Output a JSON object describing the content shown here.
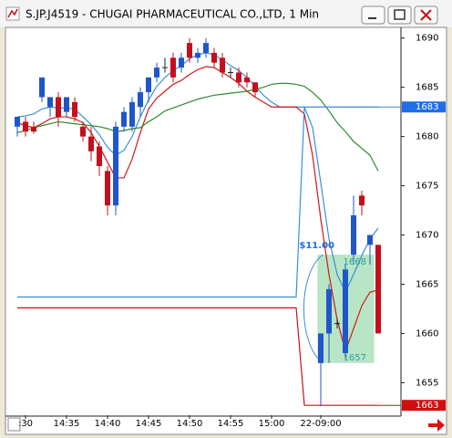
{
  "chart_data": {
    "type": "candlestick",
    "title": "S.JP.J4519 - CHUGAI PHARMACEUTICAL CO.,LTD, 1 Min",
    "categories": [
      null,
      ":30",
      null,
      null,
      null,
      null,
      "14:35",
      null,
      null,
      null,
      null,
      "14:40",
      null,
      null,
      null,
      null,
      "14:45",
      null,
      null,
      null,
      null,
      "14:50",
      null,
      null,
      null,
      null,
      "14:55",
      null,
      null,
      null,
      null,
      "15:00",
      null,
      null,
      null,
      null,
      null,
      "22-09:00",
      null,
      null,
      null,
      null,
      null,
      null,
      null
    ],
    "open": [
      1681,
      1681.5,
      1681,
      1684,
      1683,
      1684,
      1682.5,
      1683.5,
      1681,
      1680,
      1679,
      1676.5,
      1673,
      1681,
      1681,
      1683,
      1684.5,
      1686,
      1687,
      1688,
      1687,
      1689.5,
      1688,
      1688.5,
      1688.5,
      1688,
      1686.5,
      1686.5,
      1686,
      1685.5,
      null,
      null,
      null,
      null,
      null,
      null,
      null,
      1657,
      1660,
      1661,
      1658,
      1668,
      1674,
      1669,
      1669
    ],
    "high": [
      1682,
      1682,
      1681.5,
      1686,
      1684,
      1684.5,
      1684,
      1684,
      1681.5,
      1681,
      1679.5,
      1677,
      1681.5,
      1683,
      1684,
      1685,
      1686,
      1687.5,
      1688,
      1688.5,
      1688.5,
      1690,
      1689,
      1690,
      1689,
      1688.5,
      1687,
      1687,
      1686.5,
      1685.5,
      null,
      null,
      null,
      null,
      null,
      null,
      null,
      1660,
      1665,
      1661.5,
      1667,
      1674,
      1674.5,
      1670,
      1669
    ],
    "low": [
      1680,
      1680,
      1680.3,
      1683.5,
      1682,
      1681,
      1682,
      1681.5,
      1679.5,
      1677.5,
      1676,
      1672,
      1672,
      1680.5,
      1680.5,
      1682,
      1683.5,
      1685.5,
      1686.5,
      1685.5,
      1686.5,
      1687.5,
      1687.5,
      1688,
      1687,
      1686,
      1686,
      1685,
      1685,
      1684,
      null,
      null,
      null,
      null,
      null,
      null,
      null,
      1652.6,
      1657,
      1660.5,
      1657.5,
      1667,
      1672,
      1667,
      1660
    ],
    "close": [
      1682,
      1680.5,
      1680.5,
      1686,
      1684,
      1682,
      1684,
      1682,
      1680,
      1678.5,
      1677,
      1673,
      1681,
      1682.5,
      1683.5,
      1684.5,
      1686,
      1687,
      1687,
      1686,
      1688,
      1688,
      1688.5,
      1689.5,
      1687.5,
      1686.5,
      1686.5,
      1685.5,
      1685.5,
      1684.5,
      null,
      null,
      null,
      null,
      null,
      null,
      null,
      1660,
      1664.5,
      1661,
      1666.5,
      1672,
      1673,
      1670,
      1660
    ],
    "up_color": "#1f56c9",
    "down_color": "#c4101c",
    "series": [
      {
        "color": "#3a8fd8",
        "values": [
          1682.0,
          1682.1,
          1682.3,
          1682.8,
          1683.0,
          1682.9,
          1682.9,
          1682.8,
          1682.0,
          1681.2,
          1680.2,
          1678.9,
          1678.1,
          1678.6,
          1680.0,
          1682.0,
          1683.7,
          1685.1,
          1686.0,
          1686.7,
          1687.2,
          1687.9,
          1688.3,
          1688.5,
          1688.3,
          1687.8,
          1687.2,
          1686.7,
          1686.0,
          1685.1,
          1684.2,
          1683.5,
          1683.0,
          1683.0,
          1683.0,
          1683.0,
          1680.9,
          1675.3,
          1669.6,
          1666.0,
          1664.2,
          1666.0,
          1667.9,
          1669.6,
          1670.7
        ]
      },
      {
        "color": "#d01818",
        "values": [
          1681.4,
          1681.1,
          1680.9,
          1681.3,
          1681.8,
          1682.0,
          1682.0,
          1681.8,
          1681.4,
          1680.4,
          1679.0,
          1677.4,
          1675.8,
          1675.8,
          1677.7,
          1680.4,
          1682.8,
          1683.9,
          1684.6,
          1685.3,
          1685.7,
          1686.3,
          1686.8,
          1687.1,
          1687.0,
          1686.5,
          1686.0,
          1685.4,
          1684.6,
          1684.0,
          1683.5,
          1683.0,
          1683.0,
          1683.0,
          1683.0,
          1682.3,
          1678.1,
          1671.6,
          1666.0,
          1661.4,
          1658.2,
          1660.5,
          1662.8,
          1664.2,
          1664.4
        ]
      },
      {
        "color": "#2e8b2e",
        "values": [
          1680.4,
          1680.6,
          1680.9,
          1681.1,
          1681.3,
          1681.5,
          1681.4,
          1681.3,
          1681.2,
          1681.1,
          1681.0,
          1680.8,
          1680.5,
          1680.6,
          1680.8,
          1680.9,
          1681.5,
          1682.0,
          1682.6,
          1682.9,
          1683.2,
          1683.5,
          1683.8,
          1684.0,
          1684.2,
          1684.3,
          1684.4,
          1684.5,
          1684.6,
          1684.8,
          1685.0,
          1685.3,
          1685.4,
          1685.4,
          1685.3,
          1685.1,
          1684.5,
          1683.7,
          1682.6,
          1681.4,
          1680.5,
          1679.5,
          1678.8,
          1678.1,
          1676.5
        ]
      },
      {
        "color": "#3a8fd8",
        "values": [
          1663.7,
          1663.7,
          1663.7,
          1663.7,
          1663.7,
          1663.7,
          1663.7,
          1663.7,
          1663.7,
          1663.7,
          1663.7,
          1663.7,
          1663.7,
          1663.7,
          1663.7,
          1663.7,
          1663.7,
          1663.7,
          1663.7,
          1663.7,
          1663.7,
          1663.7,
          1663.7,
          1663.7,
          1663.7,
          1663.7,
          1663.7,
          1663.7,
          1663.7,
          1663.7,
          1663.7,
          1663.7,
          1663.7,
          1663.7,
          1663.7,
          1683,
          1683,
          1683,
          1683,
          1683,
          1683,
          1683,
          1683,
          1683,
          1683
        ]
      },
      {
        "color": "#c4101c",
        "values": [
          1662.6,
          1662.6,
          1662.6,
          1662.6,
          1662.6,
          1662.6,
          1662.6,
          1662.6,
          1662.6,
          1662.6,
          1662.6,
          1662.6,
          1662.6,
          1662.6,
          1662.6,
          1662.6,
          1662.6,
          1662.6,
          1662.6,
          1662.6,
          1662.6,
          1662.6,
          1662.6,
          1662.6,
          1662.6,
          1662.6,
          1662.6,
          1662.6,
          1662.6,
          1662.6,
          1662.6,
          1662.6,
          1662.6,
          1662.6,
          1662.6,
          1652.7,
          1652.7,
          1652.7,
          1652.7,
          1652.7,
          1652.7,
          1652.7,
          1652.7,
          1652.7,
          1652.7
        ]
      }
    ],
    "ylim": [
      1651.7,
      1690.9
    ],
    "yticks": [
      1655,
      1660,
      1665,
      1670,
      1675,
      1680,
      1685,
      1690
    ],
    "grid": false,
    "price_tags": [
      {
        "value": 1683,
        "color": "#1e6ee6"
      },
      {
        "value": 1663,
        "color": "#d01010"
      }
    ],
    "measure": {
      "label": "$11.00",
      "high": 1668,
      "low": 1657,
      "color": "#7ccf96"
    }
  }
}
